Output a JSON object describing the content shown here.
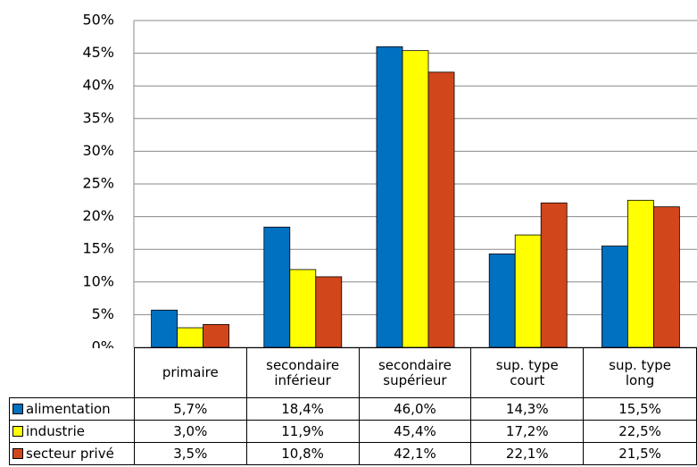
{
  "chart_data": {
    "type": "bar",
    "categories": [
      "primaire",
      "secondaire inférieur",
      "secondaire supérieur",
      "sup. type court",
      "sup. type long"
    ],
    "series": [
      {
        "name": "alimentation",
        "color": "#0070c0",
        "values": [
          5.7,
          18.4,
          46.0,
          14.3,
          15.5
        ],
        "value_labels": [
          "5,7%",
          "18,4%",
          "46,0%",
          "14,3%",
          "15,5%"
        ]
      },
      {
        "name": "industrie",
        "color": "#ffff00",
        "values": [
          3.0,
          11.9,
          45.4,
          17.2,
          22.5
        ],
        "value_labels": [
          "3,0%",
          "11,9%",
          "45,4%",
          "17,2%",
          "22,5%"
        ]
      },
      {
        "name": "secteur privé",
        "color": "#d2461c",
        "values": [
          3.5,
          10.8,
          42.1,
          22.1,
          21.5
        ],
        "value_labels": [
          "3,5%",
          "10,8%",
          "42,1%",
          "22,1%",
          "21,5%"
        ]
      }
    ],
    "ylim": [
      0,
      50
    ],
    "yticks": [
      {
        "value": 0,
        "label": "0%"
      },
      {
        "value": 5,
        "label": "5%"
      },
      {
        "value": 10,
        "label": "10%"
      },
      {
        "value": 15,
        "label": "15%"
      },
      {
        "value": 20,
        "label": "20%"
      },
      {
        "value": 25,
        "label": "25%"
      },
      {
        "value": 30,
        "label": "30%"
      },
      {
        "value": 35,
        "label": "35%"
      },
      {
        "value": 40,
        "label": "40%"
      },
      {
        "value": 45,
        "label": "45%"
      },
      {
        "value": 50,
        "label": "50%"
      }
    ],
    "grid": true
  }
}
